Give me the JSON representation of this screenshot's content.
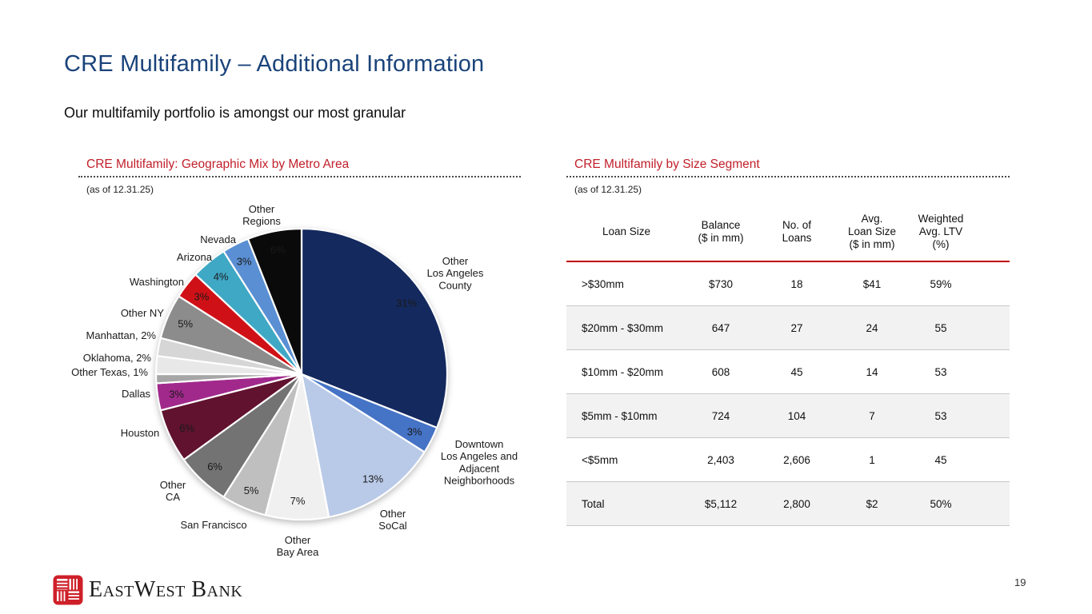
{
  "slide": {
    "title": "CRE Multifamily – Additional Information",
    "subtitle": "Our multifamily portfolio is amongst our most granular",
    "page_number": "19",
    "logo_text": "EastWest Bank",
    "accent_red": "#C1202B",
    "title_blue": "#1A437A"
  },
  "chart_data": [
    {
      "type": "pie",
      "title": "CRE Multifamily: Geographic Mix by Metro Area",
      "as_of_label": "(as of 12.31.25)",
      "start_angle_deg": 0,
      "direction": "clockwise",
      "segments": [
        {
          "name": "Other Los Angeles County",
          "label": "Other\nLos Angeles\nCounty",
          "value_pct": 31,
          "color": "#14295E",
          "pct_label": "31%",
          "pct_color": "#FFFFFF"
        },
        {
          "name": "Downtown Los Angeles and Adjacent Neighborhoods",
          "label": "Downtown\nLos Angeles and\nAdjacent\nNeighborhoods",
          "value_pct": 3,
          "color": "#4573C6",
          "pct_label": "3%",
          "pct_color": "#FFFFFF"
        },
        {
          "name": "Other SoCal",
          "label": "Other\nSoCal",
          "value_pct": 13,
          "color": "#B9CAE8",
          "pct_label": "13%",
          "pct_color": "#1A1A1A"
        },
        {
          "name": "Other Bay Area",
          "label": "Other\nBay Area",
          "value_pct": 7,
          "color": "#F1F0F0",
          "pct_label": "7%",
          "pct_color": "#1A1A1A"
        },
        {
          "name": "San Francisco",
          "label": "San Francisco",
          "value_pct": 5,
          "color": "#BFBFBF",
          "pct_label": "5%",
          "pct_color": "#1A1A1A"
        },
        {
          "name": "Other CA",
          "label": "Other\nCA",
          "value_pct": 6,
          "color": "#737373",
          "pct_label": "6%",
          "pct_color": "#FFFFFF"
        },
        {
          "name": "Houston",
          "label": "Houston",
          "value_pct": 6,
          "color": "#60122E",
          "pct_label": "6%",
          "pct_color": "#FFFFFF"
        },
        {
          "name": "Dallas",
          "label": "Dallas",
          "value_pct": 3,
          "color": "#A1298C",
          "pct_label": "3%",
          "pct_color": "#FFFFFF"
        },
        {
          "name": "Other Texas",
          "label": "Other Texas, 1%",
          "value_pct": 1,
          "color": "#A6A6A6"
        },
        {
          "name": "Oklahoma",
          "label": "Oklahoma, 2%",
          "value_pct": 2,
          "color": "#E8E8E8"
        },
        {
          "name": "Manhattan",
          "label": "Manhattan, 2%",
          "value_pct": 2,
          "color": "#D6D6D6"
        },
        {
          "name": "Other NY",
          "label": "Other NY",
          "value_pct": 5,
          "color": "#8C8C8C",
          "pct_label": "5%",
          "pct_color": "#FFFFFF"
        },
        {
          "name": "Washington",
          "label": "Washington",
          "value_pct": 3,
          "color": "#CF1117",
          "pct_label": "3%",
          "pct_color": "#FFFFFF"
        },
        {
          "name": "Arizona",
          "label": "Arizona",
          "value_pct": 4,
          "color": "#3FA8C5",
          "pct_label": "4%",
          "pct_color": "#FFFFFF"
        },
        {
          "name": "Nevada",
          "label": "Nevada",
          "value_pct": 3,
          "color": "#5A8FD3",
          "pct_label": "3%",
          "pct_color": "#FFFFFF"
        },
        {
          "name": "Other Regions",
          "label": "Other\nRegions",
          "value_pct": 6,
          "color": "#0A0A0A",
          "pct_label": "6%",
          "pct_color": "#FFFFFF"
        }
      ]
    },
    {
      "type": "table",
      "title": "CRE Multifamily by Size Segment",
      "as_of_label": "(as of 12.31.25)",
      "columns": [
        "Loan Size",
        "Balance\n($ in mm)",
        "No. of\nLoans",
        "Avg.\nLoan Size\n($ in mm)",
        "Weighted\nAvg. LTV\n(%)"
      ],
      "rows": [
        [
          ">$30mm",
          "$730",
          "18",
          "$41",
          "59%"
        ],
        [
          "$20mm - $30mm",
          "647",
          "27",
          "24",
          "55"
        ],
        [
          "$10mm - $20mm",
          "608",
          "45",
          "14",
          "53"
        ],
        [
          "$5mm - $10mm",
          "724",
          "104",
          "7",
          "53"
        ],
        [
          "<$5mm",
          "2,403",
          "2,606",
          "1",
          "45"
        ],
        [
          "Total",
          "$5,112",
          "2,800",
          "$2",
          "50%"
        ]
      ]
    }
  ]
}
